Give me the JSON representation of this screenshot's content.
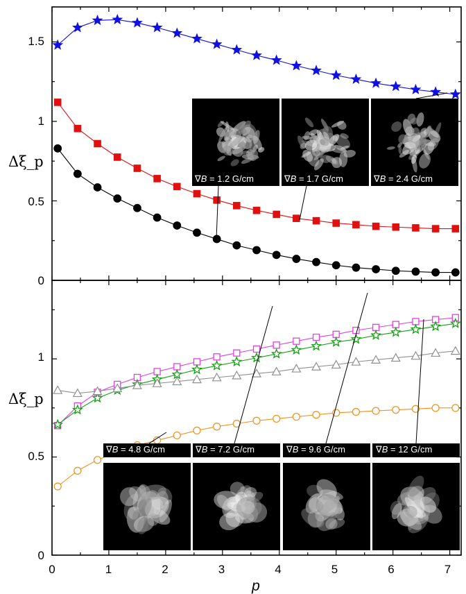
{
  "chart_data": [
    {
      "type": "line",
      "panel": "top",
      "xlabel": "p",
      "ylabel": "Δξ_p",
      "xlim": [
        0,
        7.2
      ],
      "ylim": [
        0,
        1.72
      ],
      "x_ticks": [
        "0",
        "1",
        "2",
        "3",
        "4",
        "5",
        "6",
        "7"
      ],
      "y_ticks": [
        "0",
        "0.5",
        "1",
        "1.5"
      ],
      "x": [
        0.1,
        0.45,
        0.8,
        1.15,
        1.5,
        1.85,
        2.2,
        2.55,
        2.9,
        3.25,
        3.6,
        3.95,
        4.3,
        4.65,
        5.0,
        5.35,
        5.7,
        6.05,
        6.4,
        6.75,
        7.1
      ],
      "series": [
        {
          "color": "#1010e0",
          "marker": "star-filled",
          "values": [
            1.48,
            1.59,
            1.635,
            1.64,
            1.62,
            1.59,
            1.555,
            1.52,
            1.485,
            1.45,
            1.415,
            1.385,
            1.35,
            1.32,
            1.29,
            1.265,
            1.24,
            1.22,
            1.2,
            1.185,
            1.17
          ]
        },
        {
          "color": "#e01010",
          "marker": "square-filled",
          "values": [
            1.12,
            0.955,
            0.86,
            0.775,
            0.705,
            0.64,
            0.59,
            0.545,
            0.505,
            0.47,
            0.44,
            0.415,
            0.39,
            0.375,
            0.36,
            0.35,
            0.34,
            0.335,
            0.33,
            0.325,
            0.325
          ]
        },
        {
          "color": "#000000",
          "marker": "circle-filled",
          "values": [
            0.83,
            0.67,
            0.585,
            0.515,
            0.455,
            0.395,
            0.345,
            0.3,
            0.26,
            0.22,
            0.19,
            0.16,
            0.135,
            0.115,
            0.095,
            0.08,
            0.07,
            0.06,
            0.055,
            0.05,
            0.05
          ]
        }
      ],
      "insets": [
        {
          "caption_prefix": "∇",
          "caption_var": "B",
          "caption_value": " = 1.2 G/cm"
        },
        {
          "caption_prefix": "∇",
          "caption_var": "B",
          "caption_value": " = 1.7 G/cm"
        },
        {
          "caption_prefix": "∇",
          "caption_var": "B",
          "caption_value": " = 2.4 G/cm"
        }
      ]
    },
    {
      "type": "line",
      "panel": "bottom",
      "xlabel": "p",
      "ylabel": "Δξ_p",
      "xlim": [
        0,
        7.2
      ],
      "ylim": [
        0,
        1.4
      ],
      "x_ticks": [
        "0",
        "1",
        "2",
        "3",
        "4",
        "5",
        "6",
        "7"
      ],
      "y_ticks": [
        "0",
        "0.5",
        "1"
      ],
      "x": [
        0.1,
        0.45,
        0.8,
        1.15,
        1.5,
        1.85,
        2.2,
        2.55,
        2.9,
        3.25,
        3.6,
        3.95,
        4.3,
        4.65,
        5.0,
        5.35,
        5.7,
        6.05,
        6.4,
        6.75,
        7.1
      ],
      "series": [
        {
          "color": "#e040e0",
          "marker": "square-open",
          "values": [
            0.66,
            0.76,
            0.83,
            0.87,
            0.905,
            0.935,
            0.96,
            0.985,
            1.01,
            1.03,
            1.05,
            1.07,
            1.09,
            1.11,
            1.125,
            1.145,
            1.16,
            1.175,
            1.19,
            1.2,
            1.21
          ]
        },
        {
          "color": "#10a010",
          "marker": "star-open",
          "values": [
            0.665,
            0.74,
            0.8,
            0.84,
            0.87,
            0.895,
            0.92,
            0.945,
            0.965,
            0.985,
            1.005,
            1.025,
            1.045,
            1.065,
            1.085,
            1.1,
            1.12,
            1.135,
            1.15,
            1.165,
            1.18
          ]
        },
        {
          "color": "#909090",
          "marker": "triangle-open",
          "values": [
            0.84,
            0.825,
            0.835,
            0.85,
            0.865,
            0.875,
            0.885,
            0.895,
            0.905,
            0.915,
            0.925,
            0.935,
            0.95,
            0.96,
            0.97,
            0.985,
            0.995,
            1.005,
            1.015,
            1.03,
            1.04
          ]
        },
        {
          "color": "#f0901a",
          "marker": "circle-open",
          "values": [
            0.35,
            0.43,
            0.485,
            0.525,
            0.56,
            0.585,
            0.61,
            0.635,
            0.655,
            0.67,
            0.685,
            0.695,
            0.705,
            0.715,
            0.725,
            0.73,
            0.735,
            0.74,
            0.745,
            0.75,
            0.75
          ]
        }
      ],
      "insets": [
        {
          "caption_prefix": "∇",
          "caption_var": "B",
          "caption_value": " = 4.8 G/cm"
        },
        {
          "caption_prefix": "∇",
          "caption_var": "B",
          "caption_value": " = 7.2 G/cm"
        },
        {
          "caption_prefix": "∇",
          "caption_var": "B",
          "caption_value": " = 9.6 G/cm"
        },
        {
          "caption_prefix": "∇",
          "caption_var": "B",
          "caption_value": " = 12 G/cm"
        }
      ]
    }
  ]
}
